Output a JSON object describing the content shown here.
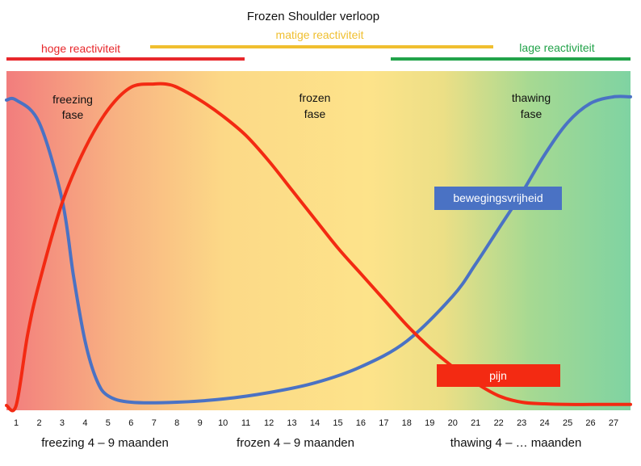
{
  "title": "Frozen Shoulder verloop",
  "reactivity": {
    "high": {
      "label": "hoge reactiviteit",
      "color": "#e8272b"
    },
    "moderate": {
      "label": "matige reactiviteit",
      "color": "#f0bf2f"
    },
    "low": {
      "label": "lage reactiviteit",
      "color": "#22a34a"
    }
  },
  "phase_labels": {
    "freezing": [
      "freezing",
      "fase"
    ],
    "frozen": [
      "frozen",
      "fase"
    ],
    "thawing": [
      "thawing",
      "fase"
    ]
  },
  "legend": {
    "mobility": {
      "label": "bewegingsvrijheid",
      "color": "#4a72c4"
    },
    "pain": {
      "label": "pijn",
      "color": "#f32a12"
    }
  },
  "month_ticks": [
    "1",
    "2",
    "3",
    "4",
    "5",
    "6",
    "7",
    "8",
    "9",
    "10",
    "11",
    "12",
    "13",
    "14",
    "15",
    "16",
    "17",
    "18",
    "19",
    "20",
    "21",
    "22",
    "23",
    "24",
    "25",
    "26",
    "27"
  ],
  "durations": {
    "freezing": "freezing 4 – 9 maanden",
    "frozen": "frozen 4 – 9 maanden",
    "thawing": "thawing 4 – … maanden"
  },
  "background_gradient": [
    "#f27d7d",
    "#f8b382",
    "#fcd987",
    "#fde38a",
    "#ecdf86",
    "#a6d992",
    "#7fd3a2"
  ],
  "chart_data": {
    "type": "line",
    "x_unit": "maanden",
    "xlim": [
      1,
      27
    ],
    "ylim": [
      0,
      100
    ],
    "grid": false,
    "series": [
      {
        "name": "bewegingsvrijheid",
        "color": "#4a72c4",
        "x": [
          1,
          2,
          3,
          3.5,
          4,
          4.5,
          5,
          6,
          8,
          10,
          12,
          14,
          16,
          18,
          20,
          21,
          22,
          23,
          24,
          25,
          26,
          27
        ],
        "y": [
          95,
          88,
          64,
          40,
          20,
          8,
          3,
          1,
          1,
          2,
          4,
          7,
          12,
          20,
          34,
          44,
          55,
          66,
          78,
          88,
          94,
          96
        ]
      },
      {
        "name": "pijn",
        "color": "#f32a12",
        "x": [
          1,
          1.5,
          2,
          3,
          4,
          5,
          6,
          7,
          7.5,
          8,
          9,
          10,
          11,
          12,
          13,
          14,
          15,
          16,
          17,
          18,
          19,
          20,
          21,
          22,
          23,
          24,
          25,
          26,
          27
        ],
        "y": [
          0,
          22,
          38,
          63,
          80,
          92,
          99,
          100,
          100,
          99,
          95,
          90,
          84,
          76,
          67,
          58,
          49,
          41,
          33,
          25,
          18,
          12,
          7,
          3,
          1,
          0.5,
          0.3,
          0.3,
          0.3
        ]
      }
    ]
  }
}
